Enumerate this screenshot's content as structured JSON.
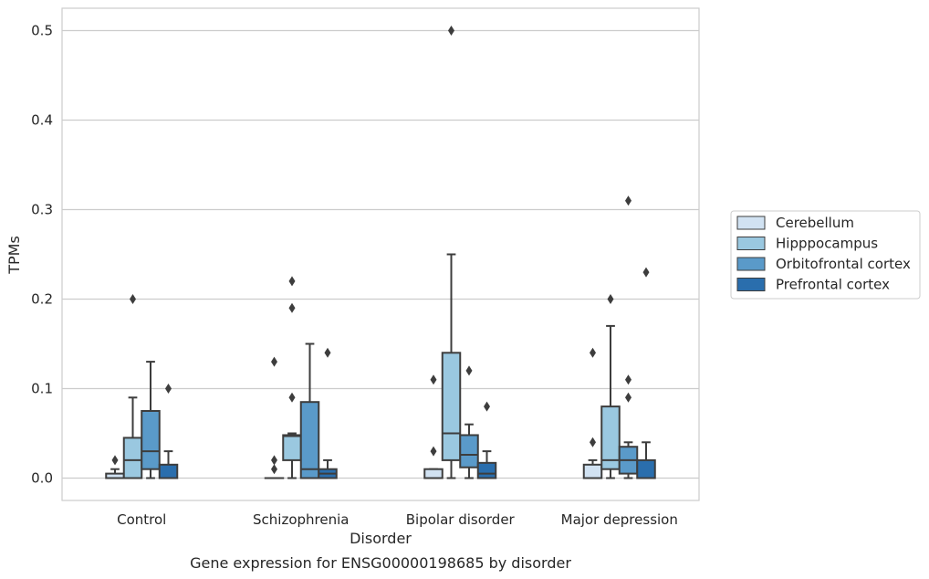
{
  "chart_data": {
    "type": "box",
    "caption": "Gene expression for ENSG00000198685 by disorder",
    "xlabel": "Disorder",
    "ylabel": "TPMs",
    "ylim": [
      -0.025,
      0.525
    ],
    "yticks": [
      0.0,
      0.1,
      0.2,
      0.3,
      0.4,
      0.5
    ],
    "ytick_labels": [
      "0.0",
      "0.1",
      "0.2",
      "0.3",
      "0.4",
      "0.5"
    ],
    "grid": "horizontal",
    "legend_position": "right",
    "categories": [
      "Control",
      "Schizophrenia",
      "Bipolar disorder",
      "Major depression"
    ],
    "series": [
      {
        "name": "Cerebellum",
        "color": "#d1e2f2",
        "boxes": [
          {
            "whislo": 0.0,
            "q1": 0.0,
            "med": 0.0,
            "q3": 0.005,
            "whishi": 0.01,
            "fliers": [
              0.02
            ]
          },
          {
            "whislo": 0.0,
            "q1": 0.0,
            "med": 0.0,
            "q3": 0.0,
            "whishi": 0.0,
            "fliers": [
              0.01,
              0.02,
              0.13
            ]
          },
          {
            "whislo": 0.0,
            "q1": 0.0,
            "med": 0.0,
            "q3": 0.01,
            "whishi": 0.01,
            "fliers": [
              0.03,
              0.11
            ]
          },
          {
            "whislo": 0.0,
            "q1": 0.0,
            "med": 0.0,
            "q3": 0.015,
            "whishi": 0.02,
            "fliers": [
              0.04,
              0.14
            ]
          }
        ]
      },
      {
        "name": "Hipppocampus",
        "color": "#9ac8e0",
        "boxes": [
          {
            "whislo": 0.0,
            "q1": 0.0,
            "med": 0.02,
            "q3": 0.045,
            "whishi": 0.09,
            "fliers": [
              0.2
            ]
          },
          {
            "whislo": 0.0,
            "q1": 0.02,
            "med": 0.047,
            "q3": 0.048,
            "whishi": 0.05,
            "fliers": [
              0.09,
              0.19,
              0.22
            ]
          },
          {
            "whislo": 0.0,
            "q1": 0.02,
            "med": 0.05,
            "q3": 0.14,
            "whishi": 0.25,
            "fliers": [
              0.5
            ]
          },
          {
            "whislo": 0.0,
            "q1": 0.01,
            "med": 0.02,
            "q3": 0.08,
            "whishi": 0.17,
            "fliers": [
              0.2
            ]
          }
        ]
      },
      {
        "name": "Orbitofrontal cortex",
        "color": "#5a9ac9",
        "boxes": [
          {
            "whislo": 0.0,
            "q1": 0.01,
            "med": 0.03,
            "q3": 0.075,
            "whishi": 0.13,
            "fliers": []
          },
          {
            "whislo": 0.0,
            "q1": 0.0,
            "med": 0.01,
            "q3": 0.085,
            "whishi": 0.15,
            "fliers": []
          },
          {
            "whislo": 0.0,
            "q1": 0.012,
            "med": 0.026,
            "q3": 0.048,
            "whishi": 0.06,
            "fliers": [
              0.12
            ]
          },
          {
            "whislo": 0.0,
            "q1": 0.005,
            "med": 0.02,
            "q3": 0.035,
            "whishi": 0.04,
            "fliers": [
              0.09,
              0.11,
              0.31
            ]
          }
        ]
      },
      {
        "name": "Prefrontal cortex",
        "color": "#2a6ead",
        "boxes": [
          {
            "whislo": 0.0,
            "q1": 0.0,
            "med": 0.0,
            "q3": 0.015,
            "whishi": 0.03,
            "fliers": [
              0.1
            ]
          },
          {
            "whislo": 0.0,
            "q1": 0.0,
            "med": 0.005,
            "q3": 0.01,
            "whishi": 0.02,
            "fliers": [
              0.14
            ]
          },
          {
            "whislo": 0.0,
            "q1": 0.0,
            "med": 0.005,
            "q3": 0.017,
            "whishi": 0.03,
            "fliers": [
              0.08
            ]
          },
          {
            "whislo": 0.0,
            "q1": 0.0,
            "med": 0.0,
            "q3": 0.02,
            "whishi": 0.04,
            "fliers": [
              0.23
            ]
          }
        ]
      }
    ]
  }
}
